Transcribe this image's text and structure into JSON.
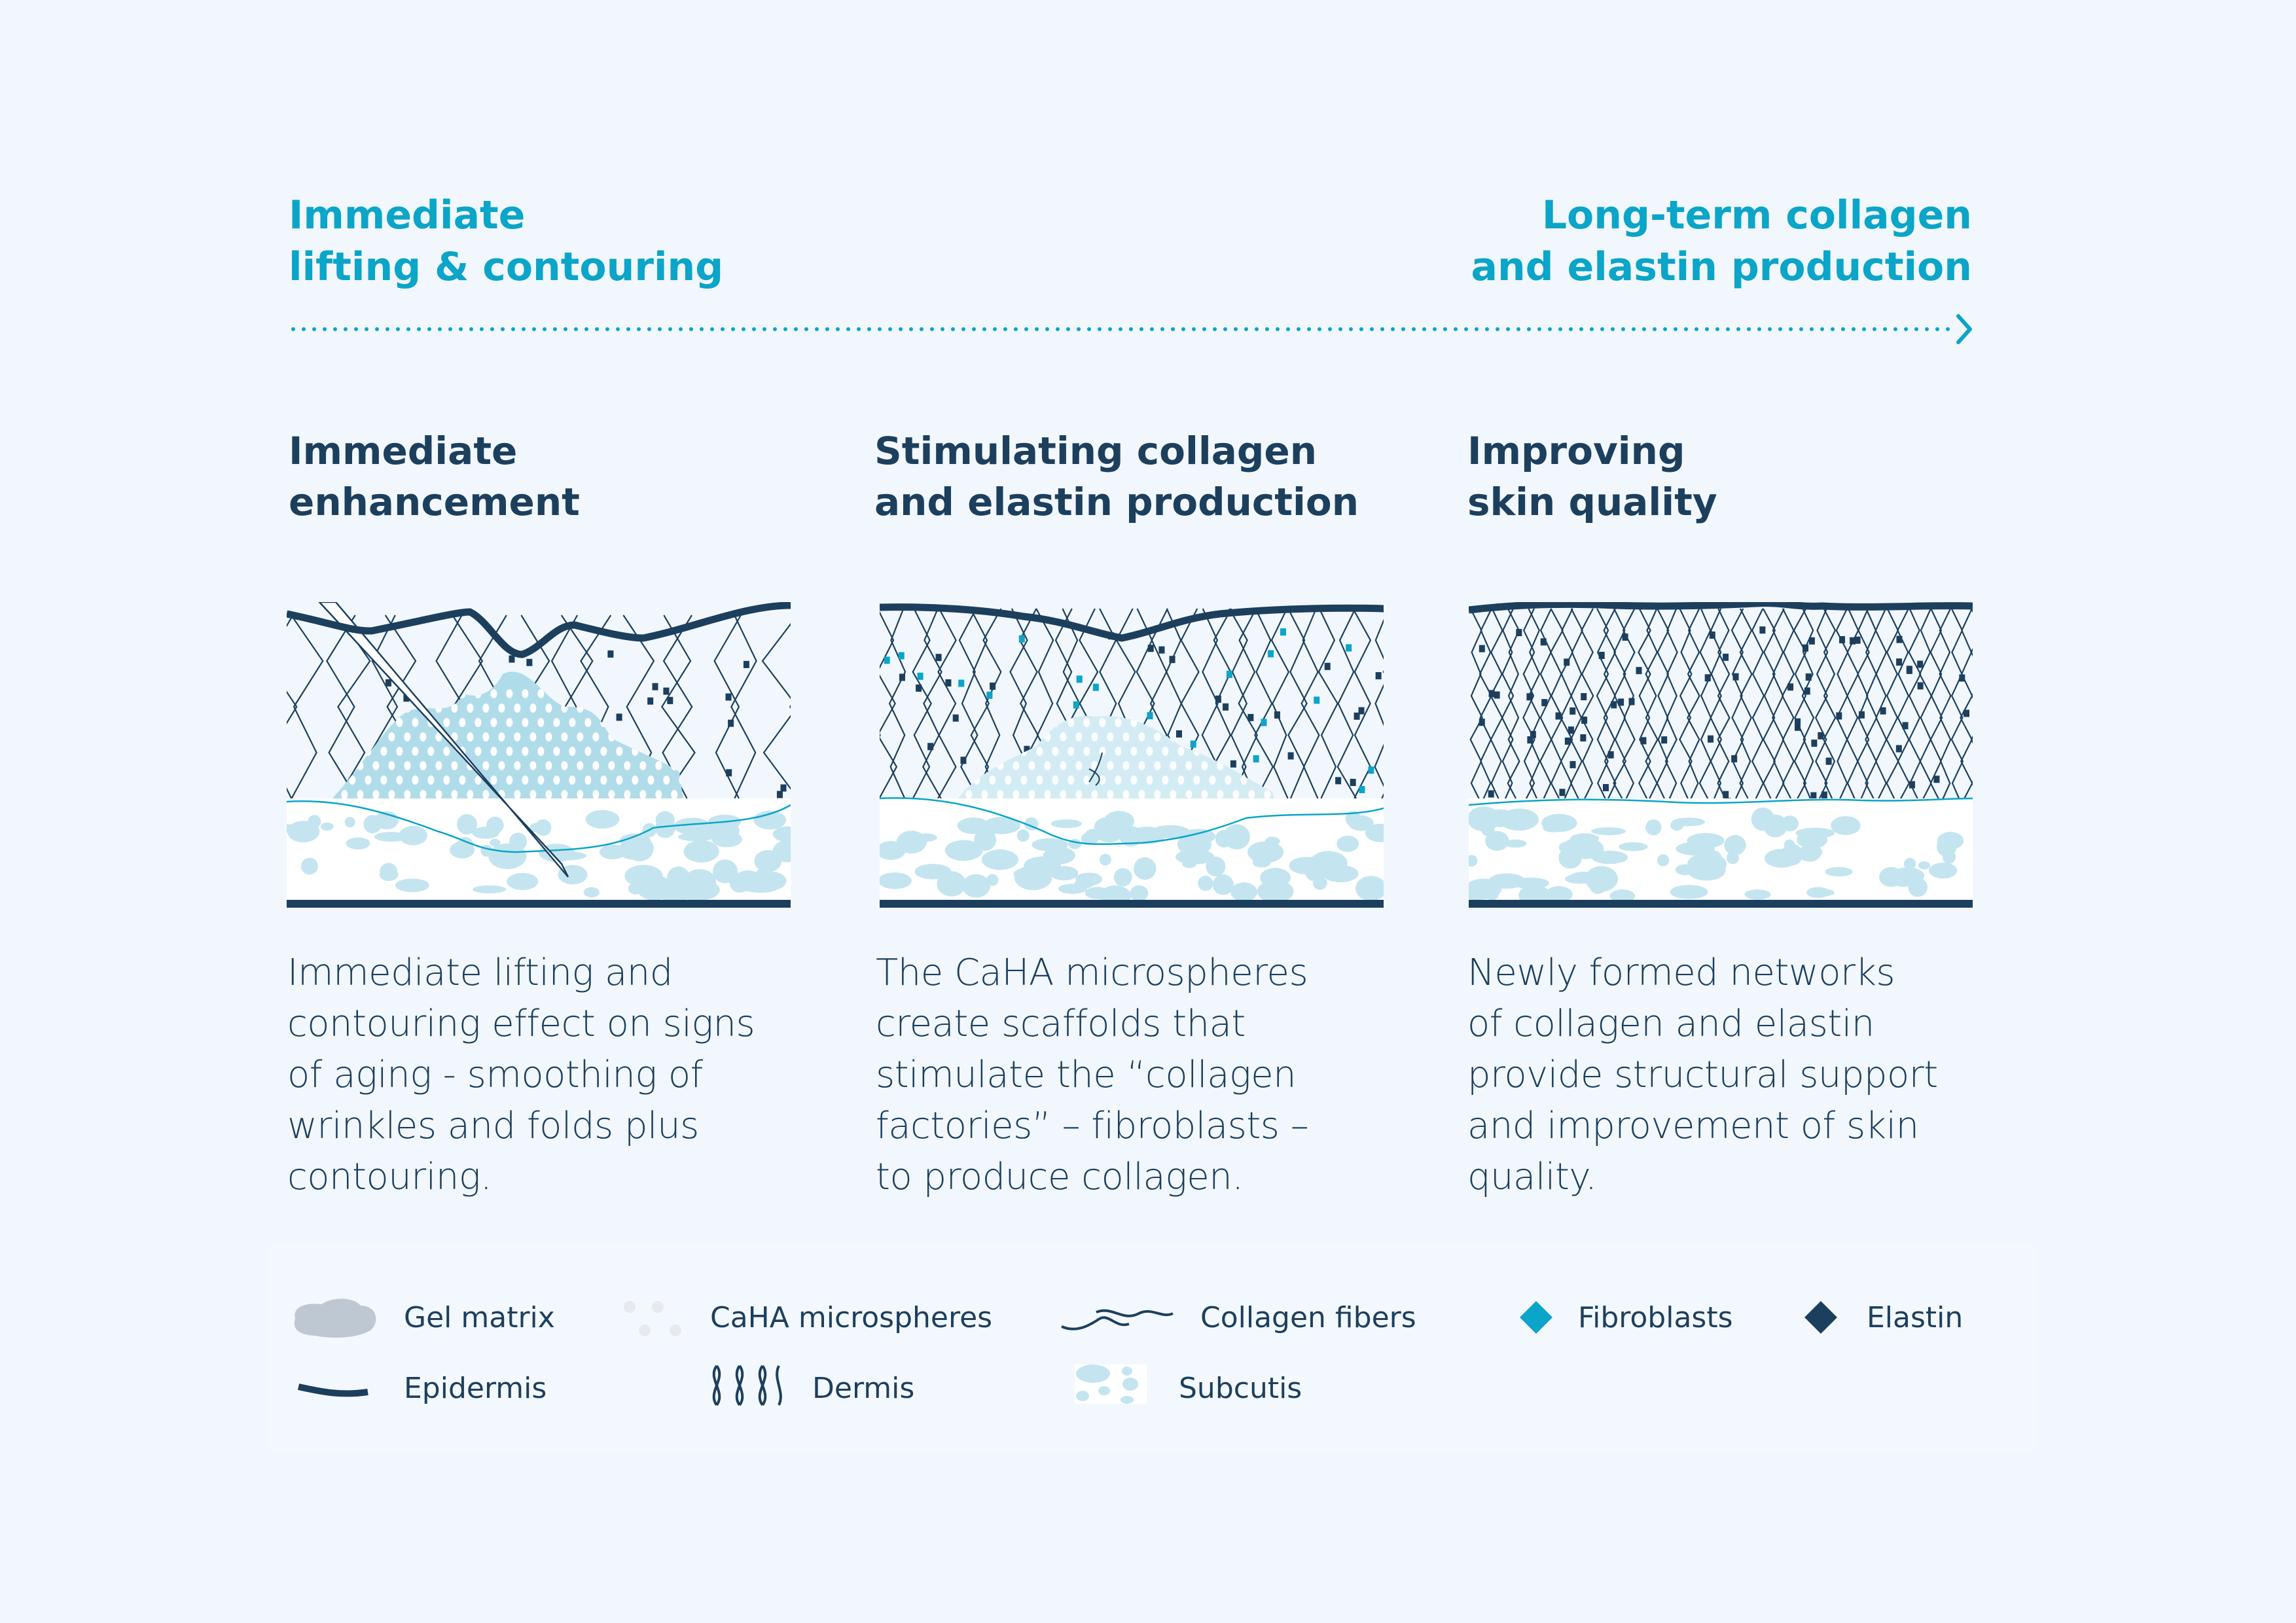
{
  "timeline": {
    "start_label": [
      "Immediate",
      "lifting & contouring"
    ],
    "end_label": [
      "Long-term collagen",
      "and elastin production"
    ]
  },
  "colors": {
    "accent": "#0aa5c8",
    "navy": "#1d3f5e",
    "subcutis": "#c4e5ef",
    "gel": "#b0dcea",
    "background": "#f1f7fd"
  },
  "stages": [
    {
      "title": [
        "Immediate",
        "enhancement"
      ],
      "description": [
        "Immediate lifting and",
        "contouring effect on signs",
        "of aging - smoothing of",
        "wrinkles and folds plus",
        "contouring."
      ]
    },
    {
      "title": [
        "Stimulating collagen",
        "and elastin production"
      ],
      "description": [
        "The CaHA microspheres",
        "create scaffolds that",
        "stimulate the “collagen",
        "factories” – fibroblasts –",
        "to produce collagen."
      ]
    },
    {
      "title": [
        "Improving",
        "skin quality"
      ],
      "description": [
        "Newly formed networks",
        "of collagen and elastin",
        "provide structural support",
        "and improvement of skin",
        "quality."
      ]
    }
  ],
  "legend": {
    "gel_matrix": "Gel matrix",
    "caha": "CaHA microspheres",
    "collagen": "Collagen fibers",
    "fibroblasts": "Fibroblasts",
    "elastin": "Elastin",
    "epidermis": "Epidermis",
    "dermis": "Dermis",
    "subcutis": "Subcutis"
  }
}
